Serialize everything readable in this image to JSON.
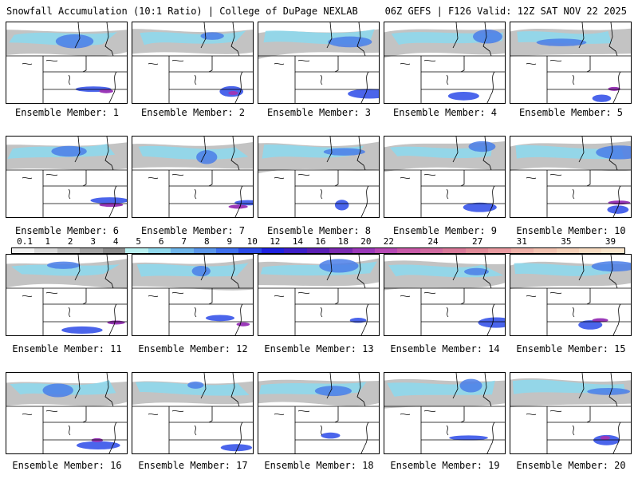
{
  "header": {
    "title_left": "Snowfall Accumulation (10:1 Ratio) | College of DuPage NEXLAB",
    "title_right": "06Z GEFS | F126 Valid: 12Z SAT NOV 22 2025"
  },
  "members": [
    {
      "label": "Ensemble Member: 1"
    },
    {
      "label": "Ensemble Member: 2"
    },
    {
      "label": "Ensemble Member: 3"
    },
    {
      "label": "Ensemble Member: 4"
    },
    {
      "label": "Ensemble Member: 5"
    },
    {
      "label": "Ensemble Member: 6"
    },
    {
      "label": "Ensemble Member: 7"
    },
    {
      "label": "Ensemble Member: 8"
    },
    {
      "label": "Ensemble Member: 9"
    },
    {
      "label": "Ensemble Member: 10"
    },
    {
      "label": "Ensemble Member: 11"
    },
    {
      "label": "Ensemble Member: 12"
    },
    {
      "label": "Ensemble Member: 13"
    },
    {
      "label": "Ensemble Member: 14"
    },
    {
      "label": "Ensemble Member: 15"
    },
    {
      "label": "Ensemble Member: 16"
    },
    {
      "label": "Ensemble Member: 17"
    },
    {
      "label": "Ensemble Member: 18"
    },
    {
      "label": "Ensemble Member: 19"
    },
    {
      "label": "Ensemble Member: 20"
    }
  ],
  "colorbar": {
    "labels": [
      "0.1",
      "1",
      "2",
      "3",
      "4",
      "5",
      "6",
      "7",
      "8",
      "9",
      "10",
      "12",
      "14",
      "16",
      "18",
      "20",
      "22",
      "24",
      "27",
      "31",
      "35",
      "39"
    ],
    "colors": [
      "#f2f2f2",
      "#d9d9d9",
      "#bdbdbd",
      "#a3a3a3",
      "#8a8a8a",
      "#b8f0f0",
      "#8fd8ec",
      "#6fb6ea",
      "#5a96ea",
      "#3f70ee",
      "#2b4ae8",
      "#1f22e0",
      "#3d1fc8",
      "#5a1fb4",
      "#7a2ab0",
      "#9a38b8",
      "#b648b4",
      "#c85aa8",
      "#d06aa0",
      "#d87898",
      "#e08a98",
      "#e89aa0",
      "#eeb0a8",
      "#f2c2b0",
      "#f5d0b8",
      "#f8dcc2",
      "#fae6cc"
    ]
  }
}
